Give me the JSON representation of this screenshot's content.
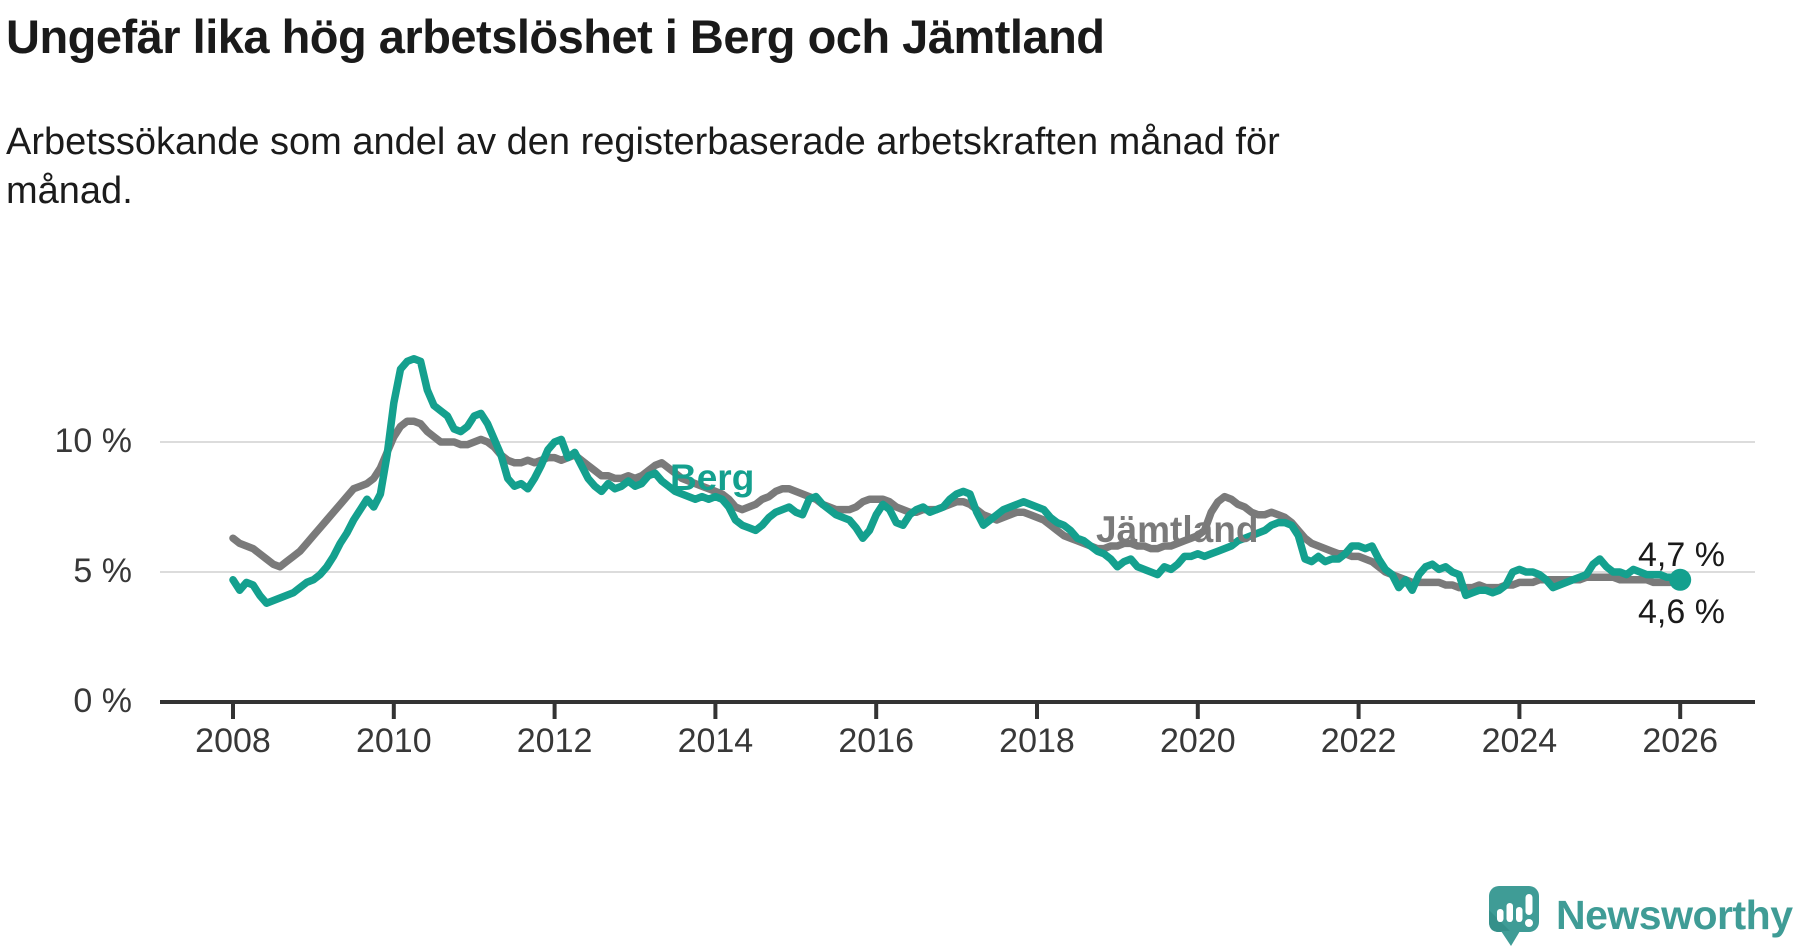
{
  "header": {
    "title": "Ungefär lika hög arbetslöshet i Berg och Jämtland",
    "subtitle_lines": [
      "Arbetssökande som andel av den registerbaserade arbetskraften månad för",
      "månad."
    ]
  },
  "chart_data": {
    "type": "line",
    "title": "Ungefär lika hög arbetslöshet i Berg och Jämtland",
    "subtitle": "Arbetssökande som andel av den registerbaserade arbetskraften månad för månad.",
    "x_unit": "year-month",
    "x_start_year": 2008,
    "points_per_year": 12,
    "x_ticks": [
      2008,
      2010,
      2012,
      2014,
      2016,
      2018,
      2020,
      2022,
      2024,
      2026
    ],
    "xlim": [
      2008,
      2026
    ],
    "ylim": [
      0,
      14
    ],
    "grid": "horizontal",
    "legend_position": "inline-labels",
    "y_ticks": [
      {
        "value": 0,
        "label": "0 %"
      },
      {
        "value": 5,
        "label": "5 %"
      },
      {
        "value": 10,
        "label": "10 %"
      }
    ],
    "colors": {
      "grid": "#dcdcdc",
      "axis": "#333333",
      "tick_text": "#383838",
      "end_label_text": "#1a1a1a"
    },
    "series": [
      {
        "name": "Jämtland",
        "label_text": "Jämtland",
        "color": "#7a7a7a",
        "end_label": "4,6 %",
        "end_value": 4.6,
        "values": [
          6.3,
          6.1,
          6.0,
          5.9,
          5.7,
          5.5,
          5.3,
          5.2,
          5.4,
          5.6,
          5.8,
          6.1,
          6.4,
          6.7,
          7.0,
          7.3,
          7.6,
          7.9,
          8.2,
          8.3,
          8.4,
          8.6,
          9.0,
          9.6,
          10.2,
          10.6,
          10.8,
          10.8,
          10.7,
          10.4,
          10.2,
          10.0,
          10.0,
          10.0,
          9.9,
          9.9,
          10.0,
          10.1,
          10.0,
          9.8,
          9.5,
          9.3,
          9.2,
          9.2,
          9.3,
          9.2,
          9.3,
          9.4,
          9.4,
          9.3,
          9.4,
          9.5,
          9.3,
          9.1,
          8.9,
          8.7,
          8.7,
          8.6,
          8.6,
          8.7,
          8.6,
          8.7,
          8.9,
          9.1,
          9.2,
          9.0,
          8.8,
          8.6,
          8.5,
          8.4,
          8.3,
          8.2,
          8.1,
          8.0,
          7.8,
          7.5,
          7.4,
          7.5,
          7.6,
          7.8,
          7.9,
          8.1,
          8.2,
          8.2,
          8.1,
          8.0,
          7.9,
          7.8,
          7.6,
          7.5,
          7.4,
          7.4,
          7.4,
          7.5,
          7.7,
          7.8,
          7.8,
          7.8,
          7.7,
          7.5,
          7.4,
          7.3,
          7.3,
          7.4,
          7.4,
          7.4,
          7.5,
          7.6,
          7.7,
          7.7,
          7.6,
          7.4,
          7.2,
          7.1,
          7.0,
          7.1,
          7.2,
          7.3,
          7.3,
          7.2,
          7.1,
          7.0,
          6.8,
          6.6,
          6.4,
          6.3,
          6.2,
          6.1,
          6.0,
          5.9,
          5.9,
          6.0,
          6.0,
          6.1,
          6.1,
          6.0,
          6.0,
          5.9,
          5.9,
          6.0,
          6.0,
          6.1,
          6.2,
          6.3,
          6.4,
          6.6,
          7.3,
          7.7,
          7.9,
          7.8,
          7.6,
          7.5,
          7.3,
          7.2,
          7.2,
          7.3,
          7.2,
          7.1,
          6.9,
          6.6,
          6.3,
          6.1,
          6.0,
          5.9,
          5.8,
          5.7,
          5.7,
          5.6,
          5.6,
          5.5,
          5.4,
          5.2,
          5.0,
          4.9,
          4.8,
          4.7,
          4.6,
          4.6,
          4.6,
          4.6,
          4.6,
          4.5,
          4.5,
          4.4,
          4.4,
          4.4,
          4.5,
          4.4,
          4.4,
          4.4,
          4.5,
          4.5,
          4.6,
          4.6,
          4.6,
          4.7,
          4.7,
          4.7,
          4.7,
          4.7,
          4.7,
          4.7,
          4.8,
          4.8,
          4.8,
          4.8,
          4.8,
          4.7,
          4.7,
          4.7,
          4.7,
          4.7,
          4.6,
          4.6,
          4.6,
          4.6,
          4.6
        ]
      },
      {
        "name": "Berg",
        "label_text": "Berg",
        "color": "#14a08e",
        "end_label": "4,7 %",
        "end_value": 4.7,
        "end_dot": true,
        "values": [
          4.7,
          4.3,
          4.6,
          4.5,
          4.1,
          3.8,
          3.9,
          4.0,
          4.1,
          4.2,
          4.4,
          4.6,
          4.7,
          4.9,
          5.2,
          5.6,
          6.1,
          6.5,
          7.0,
          7.4,
          7.8,
          7.5,
          8.0,
          9.5,
          11.5,
          12.8,
          13.1,
          13.2,
          13.1,
          12.0,
          11.4,
          11.2,
          11.0,
          10.5,
          10.4,
          10.6,
          11.0,
          11.1,
          10.7,
          10.1,
          9.5,
          8.6,
          8.3,
          8.4,
          8.2,
          8.6,
          9.1,
          9.7,
          10.0,
          10.1,
          9.4,
          9.6,
          9.1,
          8.6,
          8.3,
          8.1,
          8.4,
          8.2,
          8.3,
          8.5,
          8.3,
          8.4,
          8.7,
          8.8,
          8.5,
          8.3,
          8.1,
          8.0,
          7.9,
          7.8,
          7.9,
          7.8,
          7.9,
          7.8,
          7.5,
          7.0,
          6.8,
          6.7,
          6.6,
          6.8,
          7.1,
          7.3,
          7.4,
          7.5,
          7.3,
          7.2,
          7.8,
          7.9,
          7.6,
          7.4,
          7.2,
          7.1,
          7.0,
          6.7,
          6.3,
          6.6,
          7.2,
          7.6,
          7.4,
          6.9,
          6.8,
          7.2,
          7.4,
          7.5,
          7.3,
          7.4,
          7.5,
          7.8,
          8.0,
          8.1,
          8.0,
          7.3,
          6.8,
          7.0,
          7.2,
          7.4,
          7.5,
          7.6,
          7.7,
          7.6,
          7.5,
          7.4,
          7.1,
          6.9,
          6.8,
          6.6,
          6.3,
          6.2,
          6.0,
          5.8,
          5.7,
          5.5,
          5.2,
          5.4,
          5.5,
          5.2,
          5.1,
          5.0,
          4.9,
          5.2,
          5.1,
          5.3,
          5.6,
          5.6,
          5.7,
          5.6,
          5.7,
          5.8,
          5.9,
          6.0,
          6.2,
          6.3,
          6.4,
          6.5,
          6.6,
          6.8,
          6.9,
          6.9,
          6.8,
          6.4,
          5.5,
          5.4,
          5.6,
          5.4,
          5.5,
          5.5,
          5.7,
          6.0,
          6.0,
          5.9,
          6.0,
          5.5,
          5.1,
          4.9,
          4.4,
          4.7,
          4.3,
          4.9,
          5.2,
          5.3,
          5.1,
          5.2,
          5.0,
          4.9,
          4.1,
          4.2,
          4.3,
          4.3,
          4.2,
          4.3,
          4.5,
          5.0,
          5.1,
          5.0,
          5.0,
          4.9,
          4.7,
          4.4,
          4.5,
          4.6,
          4.7,
          4.8,
          4.9,
          5.3,
          5.5,
          5.2,
          5.0,
          5.0,
          4.9,
          5.1,
          5.0,
          4.9,
          4.9,
          4.9,
          4.8,
          4.8,
          4.7
        ]
      }
    ]
  },
  "footer": {
    "brand": "Newsworthy",
    "brand_color": "#3f9c96",
    "logo_icon": "newsworthy-speech-bubble-bar-chart-icon"
  }
}
